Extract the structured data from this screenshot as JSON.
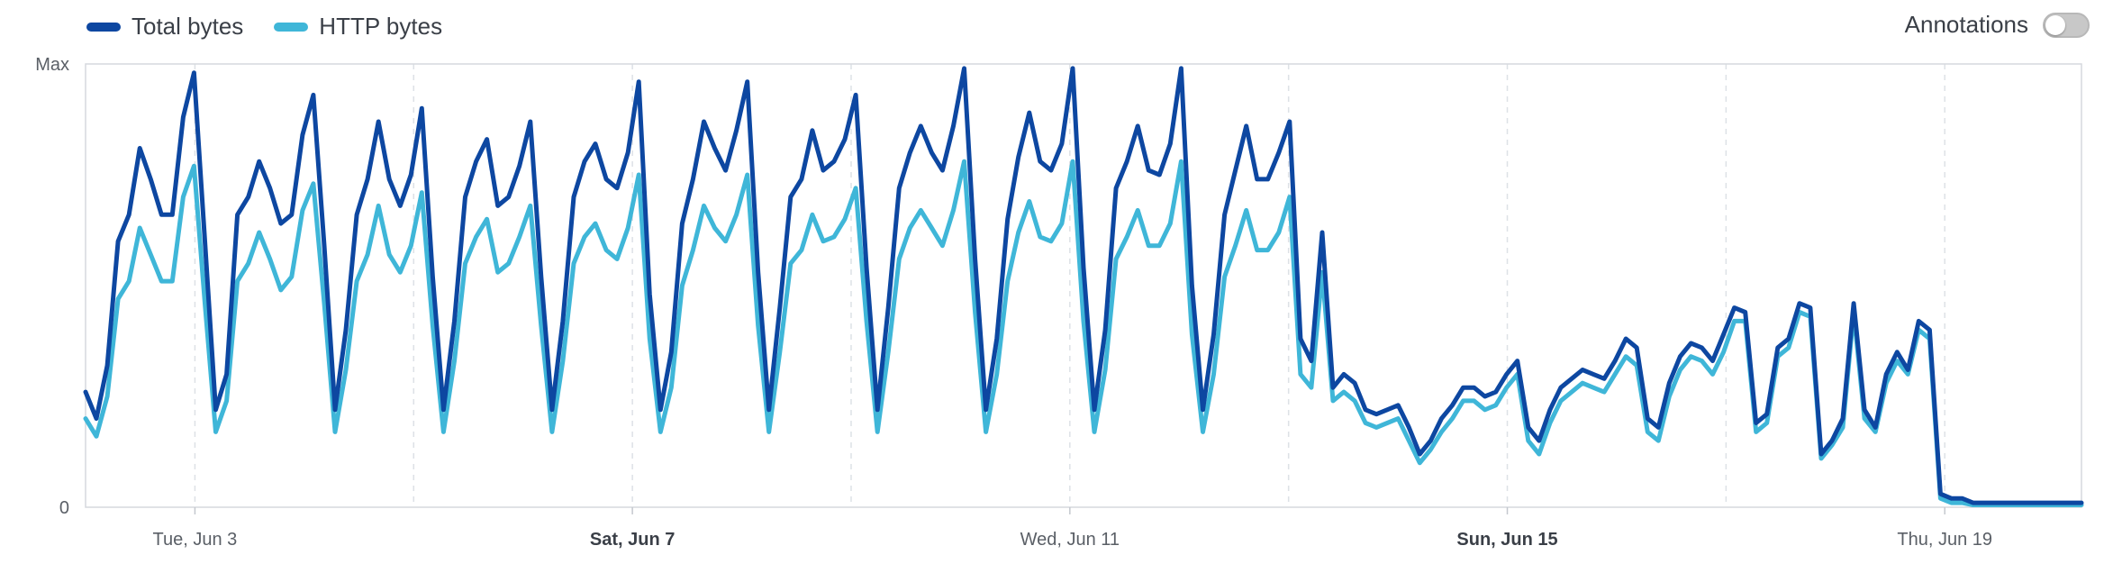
{
  "legend": {
    "items": [
      {
        "label": "Total bytes",
        "color": "#0d47a1"
      },
      {
        "label": "HTTP bytes",
        "color": "#3fb6d8"
      }
    ]
  },
  "annotations": {
    "label": "Annotations",
    "enabled": false
  },
  "chart_data": {
    "type": "line",
    "title": "",
    "xlabel": "",
    "ylabel": "",
    "y_tick_labels": [
      "Max",
      "0"
    ],
    "x_ticks": [
      {
        "label": "Tue, Jun 3",
        "bold": false,
        "day": 2
      },
      {
        "label": "Sat, Jun 7",
        "bold": true,
        "day": 6
      },
      {
        "label": "Wed, Jun 11",
        "bold": false,
        "day": 10
      },
      {
        "label": "Sun, Jun 15",
        "bold": true,
        "day": 14
      },
      {
        "label": "Thu, Jun 19",
        "bold": false,
        "day": 18
      }
    ],
    "x_range_days": [
      1,
      19.25
    ],
    "ylim": [
      0,
      1
    ],
    "grid": {
      "vertical_dashed_every_days": 2
    },
    "series": [
      {
        "name": "Total bytes",
        "color": "#0d47a1",
        "values": [
          0.26,
          0.2,
          0.32,
          0.6,
          0.66,
          0.81,
          0.74,
          0.66,
          0.66,
          0.88,
          0.98,
          0.6,
          0.22,
          0.3,
          0.66,
          0.7,
          0.78,
          0.72,
          0.64,
          0.66,
          0.84,
          0.93,
          0.59,
          0.22,
          0.4,
          0.66,
          0.74,
          0.87,
          0.74,
          0.68,
          0.75,
          0.9,
          0.52,
          0.22,
          0.42,
          0.7,
          0.78,
          0.83,
          0.68,
          0.7,
          0.77,
          0.87,
          0.52,
          0.22,
          0.42,
          0.7,
          0.78,
          0.82,
          0.74,
          0.72,
          0.8,
          0.96,
          0.48,
          0.22,
          0.35,
          0.64,
          0.74,
          0.87,
          0.81,
          0.76,
          0.85,
          0.96,
          0.53,
          0.22,
          0.45,
          0.7,
          0.74,
          0.85,
          0.76,
          0.78,
          0.83,
          0.93,
          0.54,
          0.22,
          0.45,
          0.72,
          0.8,
          0.86,
          0.8,
          0.76,
          0.86,
          0.99,
          0.56,
          0.22,
          0.38,
          0.65,
          0.79,
          0.89,
          0.78,
          0.76,
          0.82,
          0.99,
          0.54,
          0.22,
          0.4,
          0.72,
          0.78,
          0.86,
          0.76,
          0.75,
          0.82,
          0.99,
          0.5,
          0.22,
          0.39,
          0.66,
          0.76,
          0.86,
          0.74,
          0.74,
          0.8,
          0.87,
          0.38,
          0.33,
          0.62,
          0.27,
          0.3,
          0.28,
          0.22,
          0.21,
          0.22,
          0.23,
          0.18,
          0.12,
          0.15,
          0.2,
          0.23,
          0.27,
          0.27,
          0.25,
          0.26,
          0.3,
          0.33,
          0.18,
          0.15,
          0.22,
          0.27,
          0.29,
          0.31,
          0.3,
          0.29,
          0.33,
          0.38,
          0.36,
          0.2,
          0.18,
          0.28,
          0.34,
          0.37,
          0.36,
          0.33,
          0.39,
          0.45,
          0.44,
          0.19,
          0.21,
          0.36,
          0.38,
          0.46,
          0.45,
          0.12,
          0.15,
          0.2,
          0.46,
          0.22,
          0.18,
          0.3,
          0.35,
          0.31,
          0.42,
          0.4,
          0.03,
          0.02,
          0.02,
          0.01,
          0.01,
          0.01,
          0.01,
          0.01,
          0.01,
          0.01,
          0.01,
          0.01,
          0.01,
          0.01
        ]
      },
      {
        "name": "HTTP bytes",
        "color": "#3fb6d8",
        "values": [
          0.2,
          0.16,
          0.25,
          0.47,
          0.51,
          0.63,
          0.57,
          0.51,
          0.51,
          0.7,
          0.77,
          0.46,
          0.17,
          0.24,
          0.51,
          0.55,
          0.62,
          0.56,
          0.49,
          0.52,
          0.67,
          0.73,
          0.46,
          0.17,
          0.31,
          0.51,
          0.57,
          0.68,
          0.57,
          0.53,
          0.59,
          0.71,
          0.41,
          0.17,
          0.33,
          0.55,
          0.61,
          0.65,
          0.53,
          0.55,
          0.61,
          0.68,
          0.41,
          0.17,
          0.33,
          0.55,
          0.61,
          0.64,
          0.58,
          0.56,
          0.63,
          0.75,
          0.38,
          0.17,
          0.27,
          0.5,
          0.58,
          0.68,
          0.63,
          0.6,
          0.66,
          0.75,
          0.41,
          0.17,
          0.35,
          0.55,
          0.58,
          0.66,
          0.6,
          0.61,
          0.65,
          0.72,
          0.42,
          0.17,
          0.35,
          0.56,
          0.63,
          0.67,
          0.63,
          0.59,
          0.67,
          0.78,
          0.44,
          0.17,
          0.3,
          0.51,
          0.62,
          0.69,
          0.61,
          0.6,
          0.64,
          0.78,
          0.42,
          0.17,
          0.31,
          0.56,
          0.61,
          0.67,
          0.59,
          0.59,
          0.64,
          0.78,
          0.39,
          0.17,
          0.3,
          0.52,
          0.59,
          0.67,
          0.58,
          0.58,
          0.62,
          0.7,
          0.3,
          0.27,
          0.53,
          0.24,
          0.26,
          0.24,
          0.19,
          0.18,
          0.19,
          0.2,
          0.15,
          0.1,
          0.13,
          0.17,
          0.2,
          0.24,
          0.24,
          0.22,
          0.23,
          0.27,
          0.3,
          0.15,
          0.12,
          0.19,
          0.24,
          0.26,
          0.28,
          0.27,
          0.26,
          0.3,
          0.34,
          0.32,
          0.17,
          0.15,
          0.25,
          0.31,
          0.34,
          0.33,
          0.3,
          0.35,
          0.42,
          0.42,
          0.17,
          0.19,
          0.34,
          0.36,
          0.44,
          0.43,
          0.11,
          0.14,
          0.18,
          0.44,
          0.2,
          0.17,
          0.28,
          0.33,
          0.3,
          0.4,
          0.38,
          0.02,
          0.01,
          0.01,
          0.005,
          0.005,
          0.005,
          0.005,
          0.005,
          0.005,
          0.005,
          0.005,
          0.005,
          0.005,
          0.005
        ]
      }
    ]
  }
}
